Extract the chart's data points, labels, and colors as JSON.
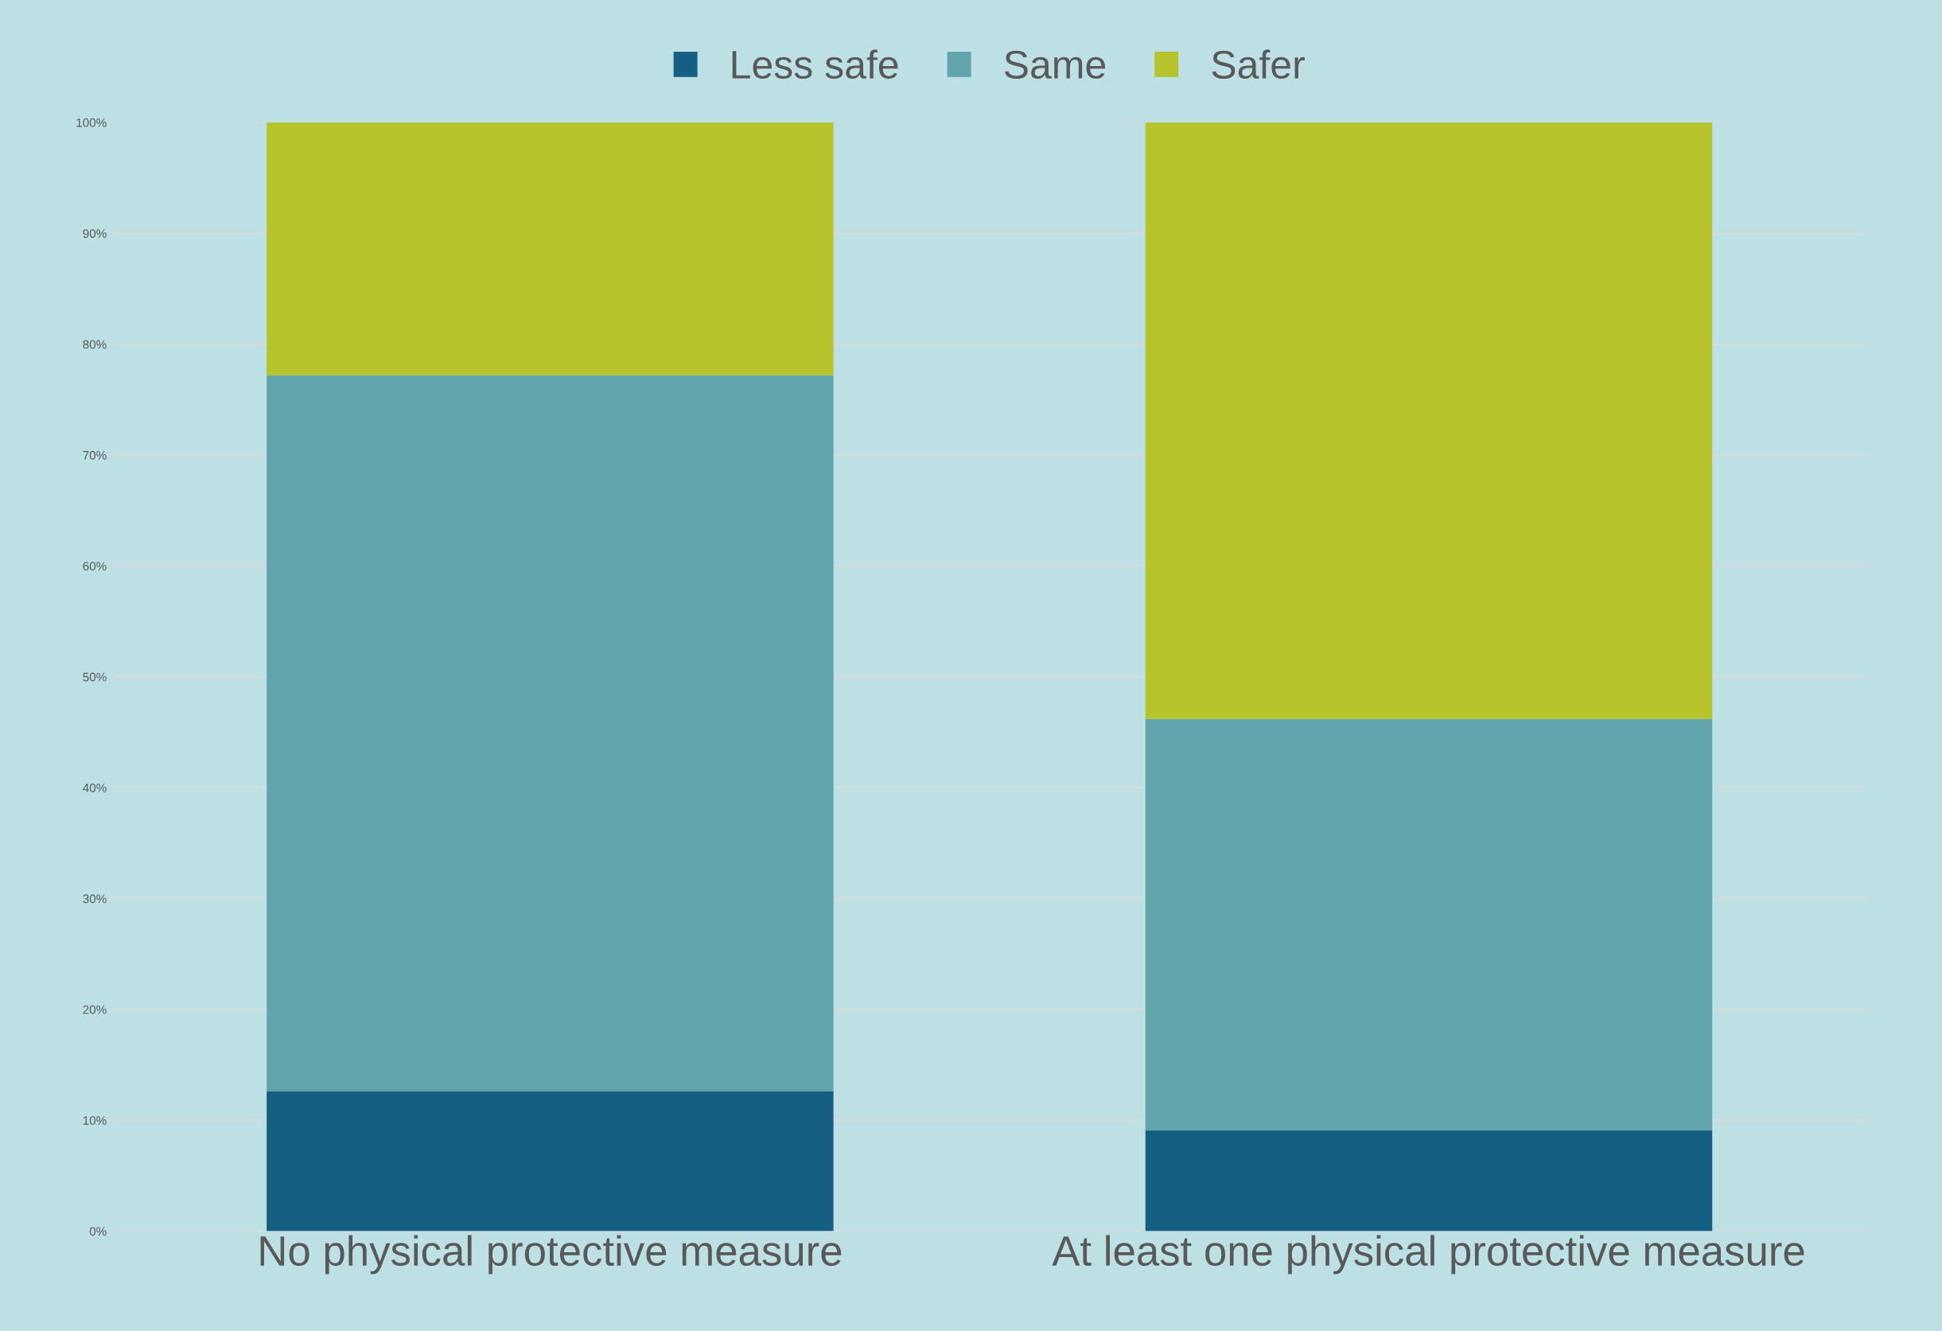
{
  "chart_data": {
    "type": "bar",
    "stacked": true,
    "categories": [
      "No physical protective measure",
      "At least one physical protective measure"
    ],
    "series": [
      {
        "name": "Less safe",
        "color": "#155f82",
        "values": [
          12.6,
          9.1
        ]
      },
      {
        "name": "Same",
        "color": "#61a4ab",
        "values": [
          64.6,
          37.1
        ]
      },
      {
        "name": "Safer",
        "color": "#b6c32b",
        "values": [
          22.8,
          53.8
        ]
      }
    ],
    "ylim": [
      0,
      100
    ],
    "yticks": [
      {
        "value": 0,
        "label": "0%"
      },
      {
        "value": 10,
        "label": "10%"
      },
      {
        "value": 20,
        "label": "20%"
      },
      {
        "value": 30,
        "label": "30%"
      },
      {
        "value": 40,
        "label": "40%"
      },
      {
        "value": 50,
        "label": "50%"
      },
      {
        "value": 60,
        "label": "60%"
      },
      {
        "value": 70,
        "label": "70%"
      },
      {
        "value": 80,
        "label": "80%"
      },
      {
        "value": 90,
        "label": "90%"
      },
      {
        "value": 100,
        "label": "100%"
      }
    ],
    "grid": "y",
    "legend": "top"
  }
}
